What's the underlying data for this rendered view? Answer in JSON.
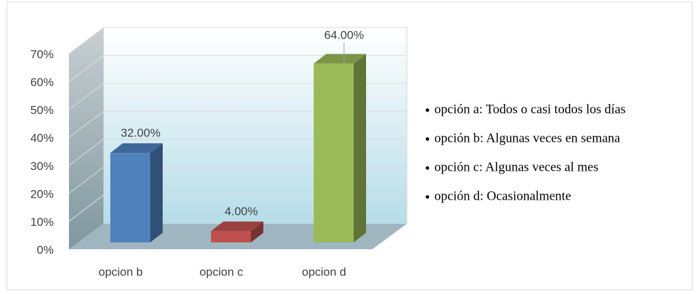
{
  "chart_data": {
    "type": "bar3d",
    "categories": [
      "opcion b",
      "opcion c",
      "opcion d"
    ],
    "values": [
      32,
      4,
      64
    ],
    "value_labels": [
      "32.00%",
      "4.00%",
      "64.00%"
    ],
    "colors": [
      "#4f81bd",
      "#c0504d",
      "#9bbb59"
    ],
    "ylim": [
      0,
      70
    ],
    "yticks": [
      {
        "value": 0,
        "label": "0%"
      },
      {
        "value": 10,
        "label": "10%"
      },
      {
        "value": 20,
        "label": "20%"
      },
      {
        "value": 30,
        "label": "30%"
      },
      {
        "value": 40,
        "label": "40%"
      },
      {
        "value": 50,
        "label": "50%"
      },
      {
        "value": 60,
        "label": "60%"
      },
      {
        "value": 70,
        "label": "70%"
      }
    ],
    "grid": true,
    "annotations": [
      "opción a: Todos o casi todos los días",
      "opción b: Algunas veces en semana",
      "opción c: Algunas veces al mes",
      "opción d: Ocasionalmente"
    ]
  }
}
